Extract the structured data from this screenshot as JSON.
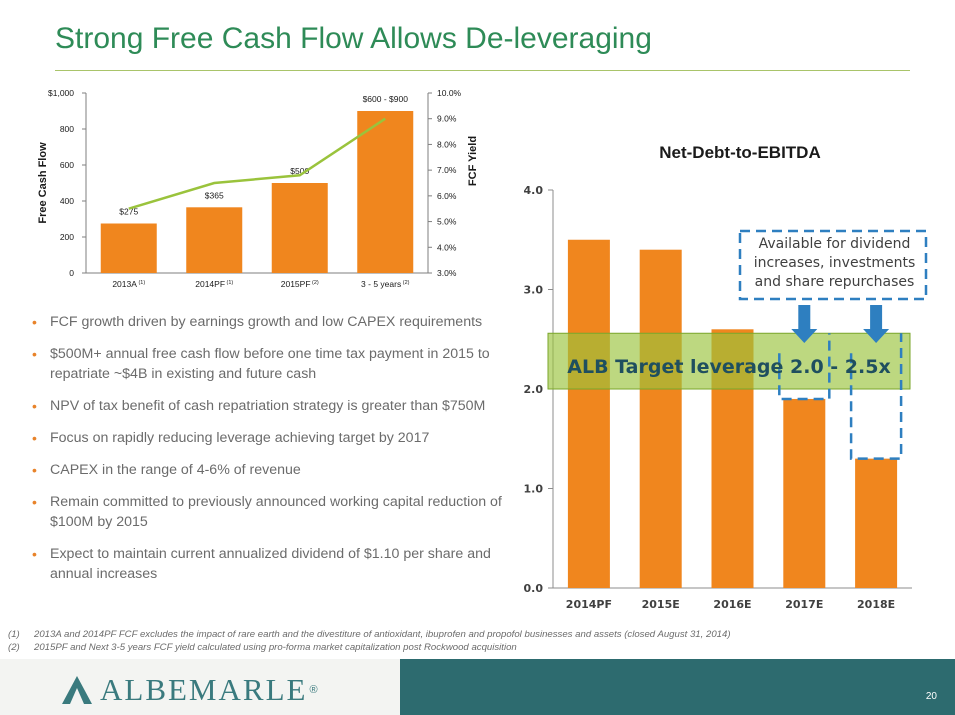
{
  "slide": {
    "title": "Strong Free Cash Flow Allows De-leveraging",
    "page_number": "20",
    "logo_text": "ALBEMARLE",
    "logo_mark": "®"
  },
  "bullets": [
    "FCF growth driven by earnings growth and low CAPEX requirements",
    "$500M+ annual free cash flow before one time tax payment in 2015 to repatriate ~$4B in existing and future cash",
    "NPV of tax benefit of cash repatriation strategy is greater than $750M",
    "Focus on rapidly reducing leverage achieving target by 2017",
    "CAPEX in the range of 4-6% of revenue",
    "Remain committed to previously announced working capital reduction of $100M by 2015",
    "Expect to maintain current annualized dividend of $1.10 per share and annual increases"
  ],
  "footnotes": [
    {
      "num": "(1)",
      "text": "2013A and 2014PF FCF excludes the impact of rare earth and the divestiture of antioxidant, ibuprofen and propofol businesses and assets (closed August 31, 2014)"
    },
    {
      "num": "(2)",
      "text": "2015PF and Next 3-5 years FCF yield calculated using pro-forma market capitalization post Rockwood acquisition"
    }
  ],
  "chart_data": [
    {
      "type": "bar",
      "title": "",
      "ylabel": "Free Cash Flow",
      "y2label": "FCF Yield",
      "categories": [
        {
          "label": "2013A",
          "note": "(1)"
        },
        {
          "label": "2014PF",
          "note": "(1)"
        },
        {
          "label": "2015PF",
          "note": "(2)"
        },
        {
          "label": "3 - 5 years",
          "note": "(2)"
        }
      ],
      "values": [
        275,
        365,
        500,
        900
      ],
      "data_labels": [
        "$275",
        "$365",
        "$500",
        "$600 - $900"
      ],
      "ylim": [
        0,
        1000
      ],
      "yticks": [
        0,
        200,
        400,
        600,
        800,
        1000
      ],
      "ytick_labels": [
        "0",
        "200",
        "400",
        "600",
        "800",
        "$1,000"
      ],
      "y2lim": [
        3.0,
        10.0
      ],
      "y2ticks": [
        "3.0%",
        "4.0%",
        "5.0%",
        "6.0%",
        "7.0%",
        "8.0%",
        "9.0%",
        "10.0%"
      ],
      "line_values": [
        5.5,
        6.5,
        6.8,
        9.0
      ],
      "bar_color": "#f0861e",
      "line_color": "#9ac33c"
    },
    {
      "type": "bar",
      "title": "Net-Debt-to-EBITDA",
      "categories": [
        "2014PF",
        "2015E",
        "2016E",
        "2017E",
        "2018E"
      ],
      "values": [
        3.5,
        3.4,
        2.6,
        1.9,
        1.3
      ],
      "ylim": [
        0,
        4
      ],
      "yticks": [
        "0.0",
        "1.0",
        "2.0",
        "3.0",
        "4.0"
      ],
      "target_band": [
        2.0,
        2.5
      ],
      "target_label": "ALB Target leverage 2.0 - 2.5x",
      "callout": "Available for dividend increases, investments and share repurchases",
      "bar_color": "#f0861e",
      "band_color": "#9ac33c",
      "callout_color": "#2e7fc0"
    }
  ]
}
